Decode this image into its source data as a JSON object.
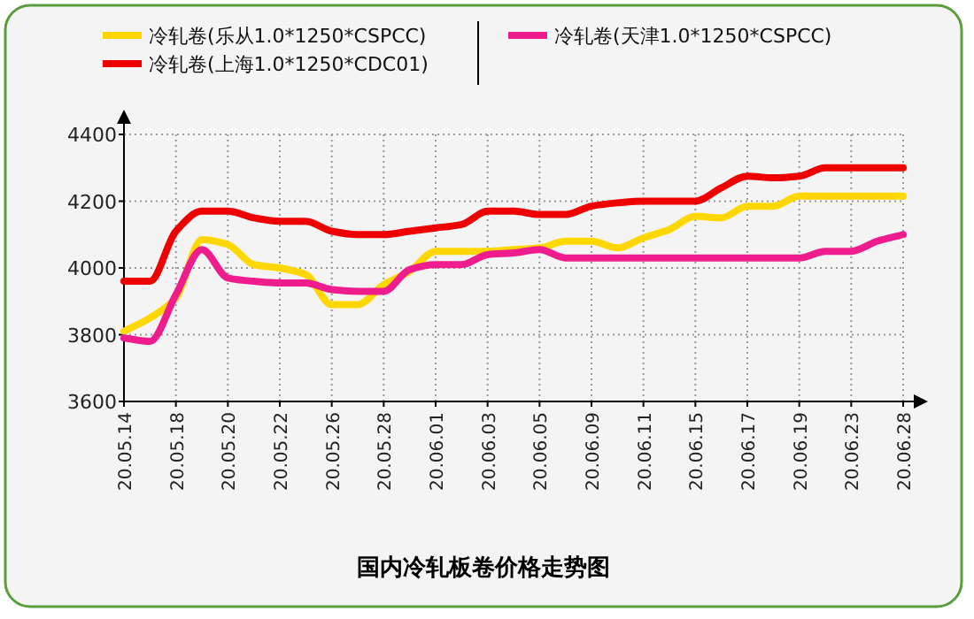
{
  "chart_data": {
    "type": "line",
    "title": "国内冷轧板卷价格走势图",
    "categories": [
      "20.05.14",
      null,
      "20.05.18",
      null,
      "20.05.20",
      null,
      "20.05.22",
      null,
      "20.05.26",
      null,
      "20.05.28",
      null,
      "20.06.01",
      null,
      "20.06.03",
      null,
      "20.06.05",
      null,
      "20.06.09",
      null,
      "20.06.11",
      null,
      "20.06.15",
      null,
      "20.06.17",
      null,
      "20.06.19",
      null,
      "20.06.23",
      null,
      "20.06.28"
    ],
    "series": [
      {
        "name": "冷轧卷(乐从1.0*1250*CSPCC)",
        "color": "#ffd700",
        "values": [
          3810,
          3850,
          3910,
          4085,
          4070,
          4010,
          4000,
          3980,
          3890,
          3890,
          3950,
          3990,
          4050,
          4050,
          4050,
          4055,
          4060,
          4080,
          4080,
          4060,
          4090,
          4115,
          4155,
          4150,
          4185,
          4185,
          4215,
          4215,
          4215,
          4215,
          4215
        ]
      },
      {
        "name": "冷轧卷(上海1.0*1250*CDC01)",
        "color": "#ee0000",
        "values": [
          3960,
          3960,
          4110,
          4170,
          4170,
          4150,
          4140,
          4140,
          4110,
          4100,
          4100,
          4110,
          4120,
          4130,
          4170,
          4170,
          4160,
          4160,
          4185,
          4195,
          4200,
          4200,
          4200,
          4240,
          4275,
          4270,
          4275,
          4300,
          4300,
          4300,
          4300
        ]
      },
      {
        "name": "冷轧卷(天津1.0*1250*CSPCC)",
        "color": "#ee1c8c",
        "values": [
          3790,
          3780,
          3920,
          4055,
          3970,
          3960,
          3955,
          3955,
          3935,
          3930,
          3930,
          3995,
          4010,
          4010,
          4040,
          4045,
          4055,
          4030,
          4030,
          4030,
          4030,
          4030,
          4030,
          4030,
          4030,
          4030,
          4030,
          4050,
          4050,
          4080,
          4100
        ]
      }
    ],
    "ylim": [
      3600,
      4400
    ],
    "yticks": [
      3600,
      3800,
      4000,
      4200,
      4400
    ],
    "grid": true,
    "legend": "top",
    "line_style": "solid"
  }
}
